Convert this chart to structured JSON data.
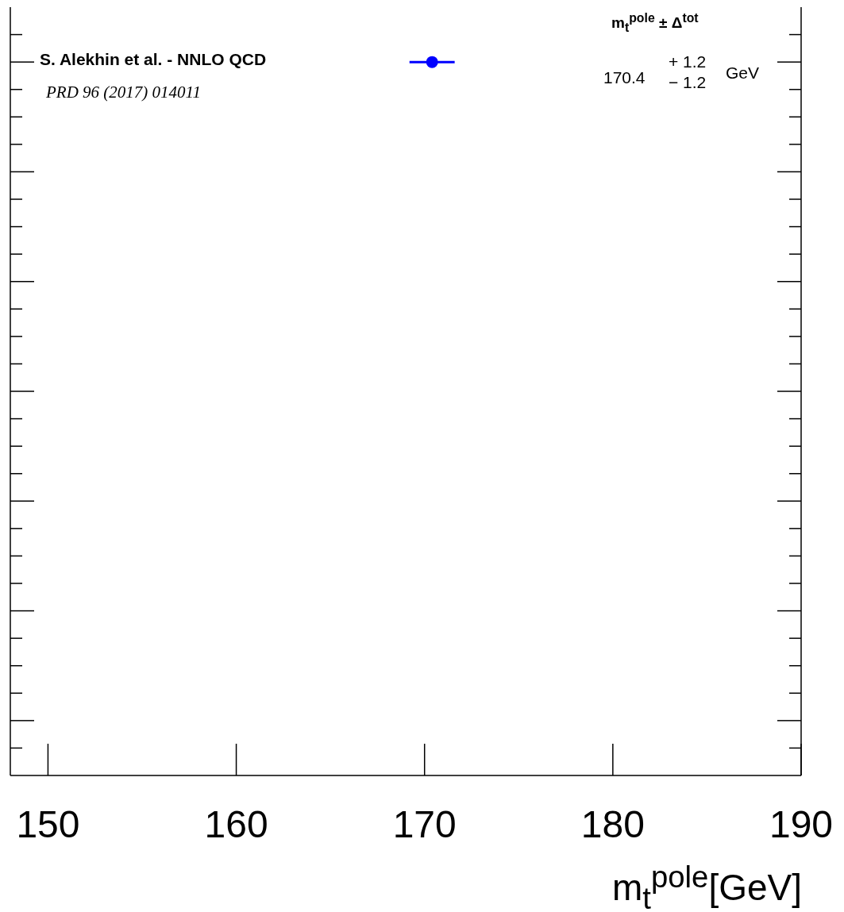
{
  "chart_data": {
    "type": "scatter",
    "orientation": "horizontal",
    "xlabel": "m$_{t}$$^{pole}$[GeV]",
    "categories": [
      "S. Alekhin et al. - NNLO QCD",
      null,
      null,
      null,
      null,
      null,
      null
    ],
    "series": [
      {
        "color": "#0000ff",
        "values": [
          170.4,
          null,
          null,
          null,
          null,
          null,
          null
        ],
        "errors": [
          1.2,
          null,
          null,
          null,
          null,
          null,
          null
        ]
      }
    ],
    "annotations": [
      "PRD 96 (2017) 014011",
      "m$_{t}$$^{pole}$  ±  Δ$^{tot}$",
      "170.4",
      "+ 1.2",
      "− 1.2",
      "GeV"
    ],
    "xlim": [
      148,
      190
    ],
    "xticks": [
      150,
      160,
      170,
      180,
      190
    ],
    "marker": "circle"
  }
}
